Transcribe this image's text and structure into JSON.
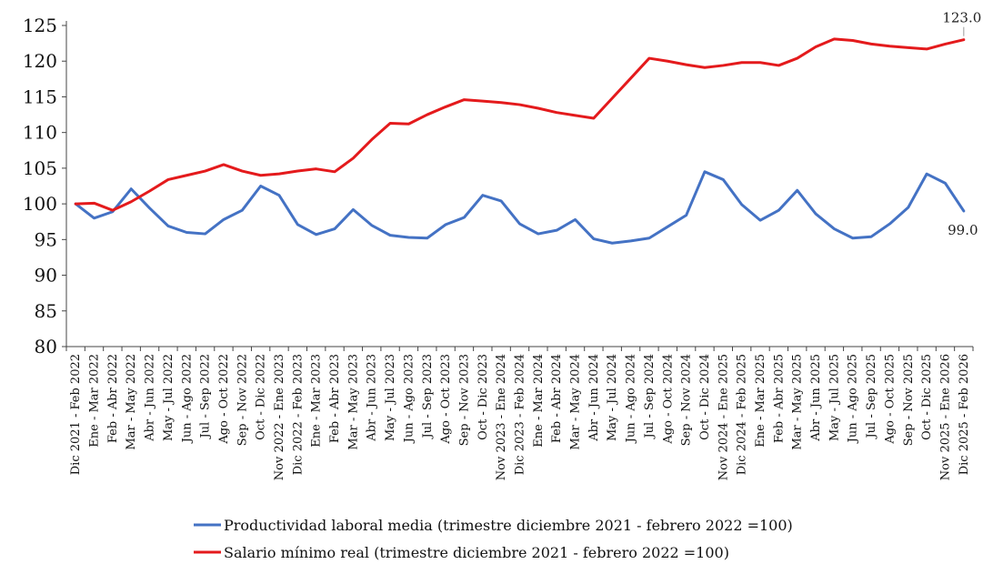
{
  "chart_data": {
    "type": "line",
    "title": "",
    "xlabel": "",
    "ylabel": "",
    "ylim": [
      80,
      125
    ],
    "yticks": [
      80,
      85,
      90,
      95,
      100,
      105,
      110,
      115,
      120,
      125
    ],
    "grid": false,
    "legend": "bottom",
    "categories": [
      "Dic 2021 - Feb 2022",
      "Ene - Mar 2022",
      "Feb - Abr 2022",
      "Mar - May 2022",
      "Abr - Jun 2022",
      "May - Jul 2022",
      "Jun - Ago 2022",
      "Jul - Sep 2022",
      "Ago - Oct 2022",
      "Sep - Nov 2022",
      "Oct - Dic 2022",
      "Nov 2022 - Ene 2023",
      "Dic 2022 - Feb 2023",
      "Ene - Mar 2023",
      "Feb - Abr 2023",
      "Mar - May 2023",
      "Abr - Jun 2023",
      "May - Jul 2023",
      "Jun - Ago 2023",
      "Jul - Sep 2023",
      "Ago - Oct 2023",
      "Sep - Nov 2023",
      "Oct - Dic 2023",
      "Nov 2023 - Ene 2024",
      "Dic 2023 - Feb 2024",
      "Ene - Mar 2024",
      "Feb - Abr 2024",
      "Mar - May 2024",
      "Abr - Jun 2024",
      "May - Jul 2024",
      "Jun - Ago 2024",
      "Jul - Sep 2024",
      "Ago - Oct 2024",
      "Sep - Nov 2024",
      "Oct - Dic 2024",
      "Nov 2024 - Ene 2025",
      "Dic 2024 - Feb 2025",
      "Ene - Mar 2025",
      "Feb - Abr 2025",
      "Mar - May 2025",
      "Abr - Jun 2025",
      "May - Jul 2025",
      "Jun - Ago 2025",
      "Jul - Sep 2025",
      "Ago - Oct 2025",
      "Sep - Nov 2025",
      "Oct - Dic 2025",
      "Nov 2025 - Ene 2026",
      "Dic 2025 - Feb 2026"
    ],
    "series": [
      {
        "name": "Productividad laboral media (trimestre diciembre 2021 - febrero 2022 =100)",
        "color": "#4472c4",
        "values": [
          100.0,
          98.0,
          98.9,
          102.1,
          99.4,
          96.9,
          96.0,
          95.8,
          97.8,
          99.1,
          102.5,
          101.2,
          97.1,
          95.7,
          96.5,
          99.2,
          97.0,
          95.6,
          95.3,
          95.2,
          97.1,
          98.1,
          101.2,
          100.4,
          97.2,
          95.8,
          96.3,
          97.8,
          95.1,
          94.5,
          94.8,
          95.2,
          96.8,
          98.4,
          104.5,
          103.4,
          99.9,
          97.7,
          99.1,
          101.9,
          98.6,
          96.5,
          95.2,
          95.4,
          97.2,
          99.5,
          104.2,
          102.9,
          99.0
        ],
        "end_label": "99.0"
      },
      {
        "name": "Salario mínimo real (trimestre diciembre 2021 - febrero 2022 =100)",
        "color": "#e41a1c",
        "values": [
          100.0,
          100.1,
          99.1,
          100.3,
          101.8,
          103.4,
          104.0,
          104.6,
          105.5,
          104.6,
          104.0,
          104.2,
          104.6,
          104.9,
          104.5,
          106.4,
          109.0,
          111.3,
          111.2,
          112.5,
          113.6,
          114.6,
          114.4,
          114.2,
          113.9,
          113.4,
          112.8,
          112.4,
          112.0,
          114.8,
          117.6,
          120.4,
          120.0,
          119.5,
          119.1,
          119.4,
          119.8,
          119.8,
          119.4,
          120.4,
          122.0,
          123.1,
          122.9,
          122.4,
          122.1,
          121.9,
          121.7,
          122.4,
          123.0
        ],
        "end_label": "123.0"
      }
    ]
  }
}
